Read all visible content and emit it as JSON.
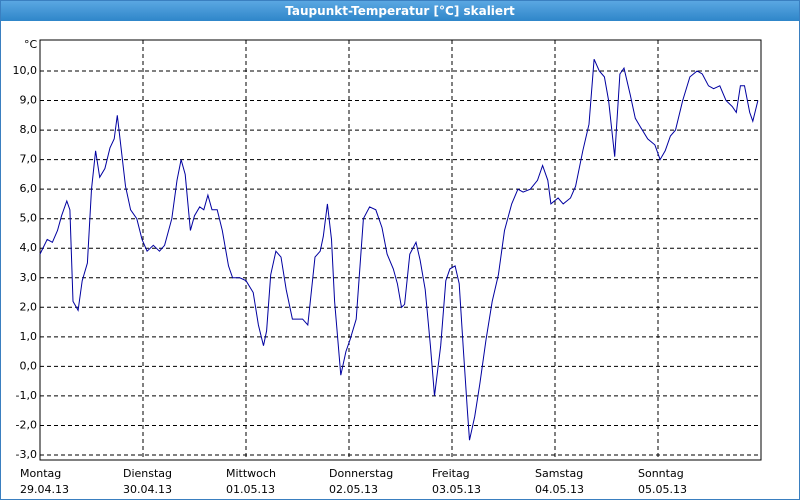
{
  "chart_data": {
    "type": "line",
    "title": "Taupunkt-Temperatur [°C] skaliert",
    "y_label": "°C",
    "color": "#0000a0",
    "grid": true,
    "xlim": [
      0,
      7
    ],
    "ylim": [
      -3.17,
      11.05
    ],
    "xticks": [
      {
        "value": 0,
        "label": "Montag",
        "date": "29.04.13"
      },
      {
        "value": 1,
        "label": "Dienstag",
        "date": "30.04.13"
      },
      {
        "value": 2,
        "label": "Mittwoch",
        "date": "01.05.13"
      },
      {
        "value": 3,
        "label": "Donnerstag",
        "date": "02.05.13"
      },
      {
        "value": 4,
        "label": "Freitag",
        "date": "03.05.13"
      },
      {
        "value": 5,
        "label": "Samstag",
        "date": "04.05.13"
      },
      {
        "value": 6,
        "label": "Sonntag",
        "date": "05.05.13"
      }
    ],
    "yticks": [
      {
        "value": -3,
        "label": "-3,0"
      },
      {
        "value": -2,
        "label": "-2,0"
      },
      {
        "value": -1,
        "label": "-1,0"
      },
      {
        "value": 0,
        "label": "0,0"
      },
      {
        "value": 1,
        "label": "1,0"
      },
      {
        "value": 2,
        "label": "2,0"
      },
      {
        "value": 3,
        "label": "3,0"
      },
      {
        "value": 4,
        "label": "4,0"
      },
      {
        "value": 5,
        "label": "5,0"
      },
      {
        "value": 6,
        "label": "6,0"
      },
      {
        "value": 7,
        "label": "7,0"
      },
      {
        "value": 8,
        "label": "8,0"
      },
      {
        "value": 9,
        "label": "9,0"
      },
      {
        "value": 10,
        "label": "10,0"
      }
    ],
    "x": [
      0,
      0.07,
      0.12,
      0.17,
      0.21,
      0.26,
      0.29,
      0.32,
      0.37,
      0.41,
      0.46,
      0.5,
      0.54,
      0.58,
      0.63,
      0.68,
      0.72,
      0.75,
      0.79,
      0.83,
      0.88,
      0.94,
      0.99,
      1.04,
      1.1,
      1.16,
      1.21,
      1.28,
      1.33,
      1.37,
      1.41,
      1.46,
      1.5,
      1.55,
      1.59,
      1.63,
      1.67,
      1.72,
      1.77,
      1.83,
      1.87,
      1.94,
      2,
      2.07,
      2.12,
      2.17,
      2.2,
      2.24,
      2.29,
      2.34,
      2.39,
      2.45,
      2.5,
      2.55,
      2.6,
      2.67,
      2.72,
      2.75,
      2.79,
      2.83,
      2.86,
      2.92,
      2.97,
      3.01,
      3.07,
      3.14,
      3.2,
      3.26,
      3.32,
      3.37,
      3.43,
      3.47,
      3.51,
      3.54,
      3.59,
      3.65,
      3.69,
      3.74,
      3.79,
      3.83,
      3.89,
      3.94,
      3.98,
      4.03,
      4.07,
      4.11,
      4.15,
      4.17,
      4.22,
      4.27,
      4.33,
      4.39,
      4.45,
      4.51,
      4.58,
      4.64,
      4.69,
      4.76,
      4.83,
      4.88,
      4.93,
      4.96,
      5.03,
      5.08,
      5.15,
      5.2,
      5.27,
      5.33,
      5.38,
      5.43,
      5.48,
      5.52,
      5.58,
      5.63,
      5.67,
      5.73,
      5.78,
      5.83,
      5.9,
      5.97,
      6.02,
      6.07,
      6.12,
      6.17,
      6.24,
      6.31,
      6.38,
      6.43,
      6.49,
      6.54,
      6.6,
      6.66,
      6.72,
      6.76,
      6.8,
      6.84,
      6.89,
      6.92,
      6.97
    ],
    "values": [
      3.8,
      4.3,
      4.2,
      4.6,
      5.1,
      5.6,
      5.3,
      2.2,
      1.9,
      2.9,
      3.5,
      6.0,
      7.3,
      6.4,
      6.7,
      7.4,
      7.7,
      8.5,
      7.3,
      6.1,
      5.3,
      5.0,
      4.3,
      3.9,
      4.1,
      3.9,
      4.1,
      5.0,
      6.3,
      7.0,
      6.5,
      4.6,
      5.1,
      5.4,
      5.3,
      5.8,
      5.3,
      5.3,
      4.6,
      3.4,
      3.0,
      3.0,
      2.9,
      2.5,
      1.4,
      0.7,
      1.2,
      3.1,
      3.9,
      3.7,
      2.6,
      1.6,
      1.6,
      1.6,
      1.4,
      3.7,
      3.9,
      4.4,
      5.5,
      4.3,
      2.2,
      -0.3,
      0.5,
      0.9,
      1.6,
      5.0,
      5.4,
      5.3,
      4.7,
      3.8,
      3.3,
      2.8,
      2.0,
      2.1,
      3.8,
      4.2,
      3.6,
      2.6,
      0.7,
      -1.0,
      0.7,
      2.9,
      3.3,
      3.4,
      2.8,
      0.6,
      -1.5,
      -2.5,
      -1.7,
      -0.6,
      0.9,
      2.2,
      3.1,
      4.6,
      5.5,
      6.0,
      5.9,
      6.0,
      6.3,
      6.8,
      6.3,
      5.5,
      5.7,
      5.5,
      5.7,
      6.1,
      7.3,
      8.2,
      10.4,
      10.0,
      9.8,
      9.0,
      7.1,
      9.9,
      10.1,
      9.2,
      8.4,
      8.1,
      7.7,
      7.5,
      7.0,
      7.3,
      7.8,
      8.0,
      9.0,
      9.8,
      10.0,
      9.9,
      9.5,
      9.4,
      9.5,
      9.0,
      8.8,
      8.6,
      9.5,
      9.5,
      8.6,
      8.3,
      9.0
    ]
  }
}
